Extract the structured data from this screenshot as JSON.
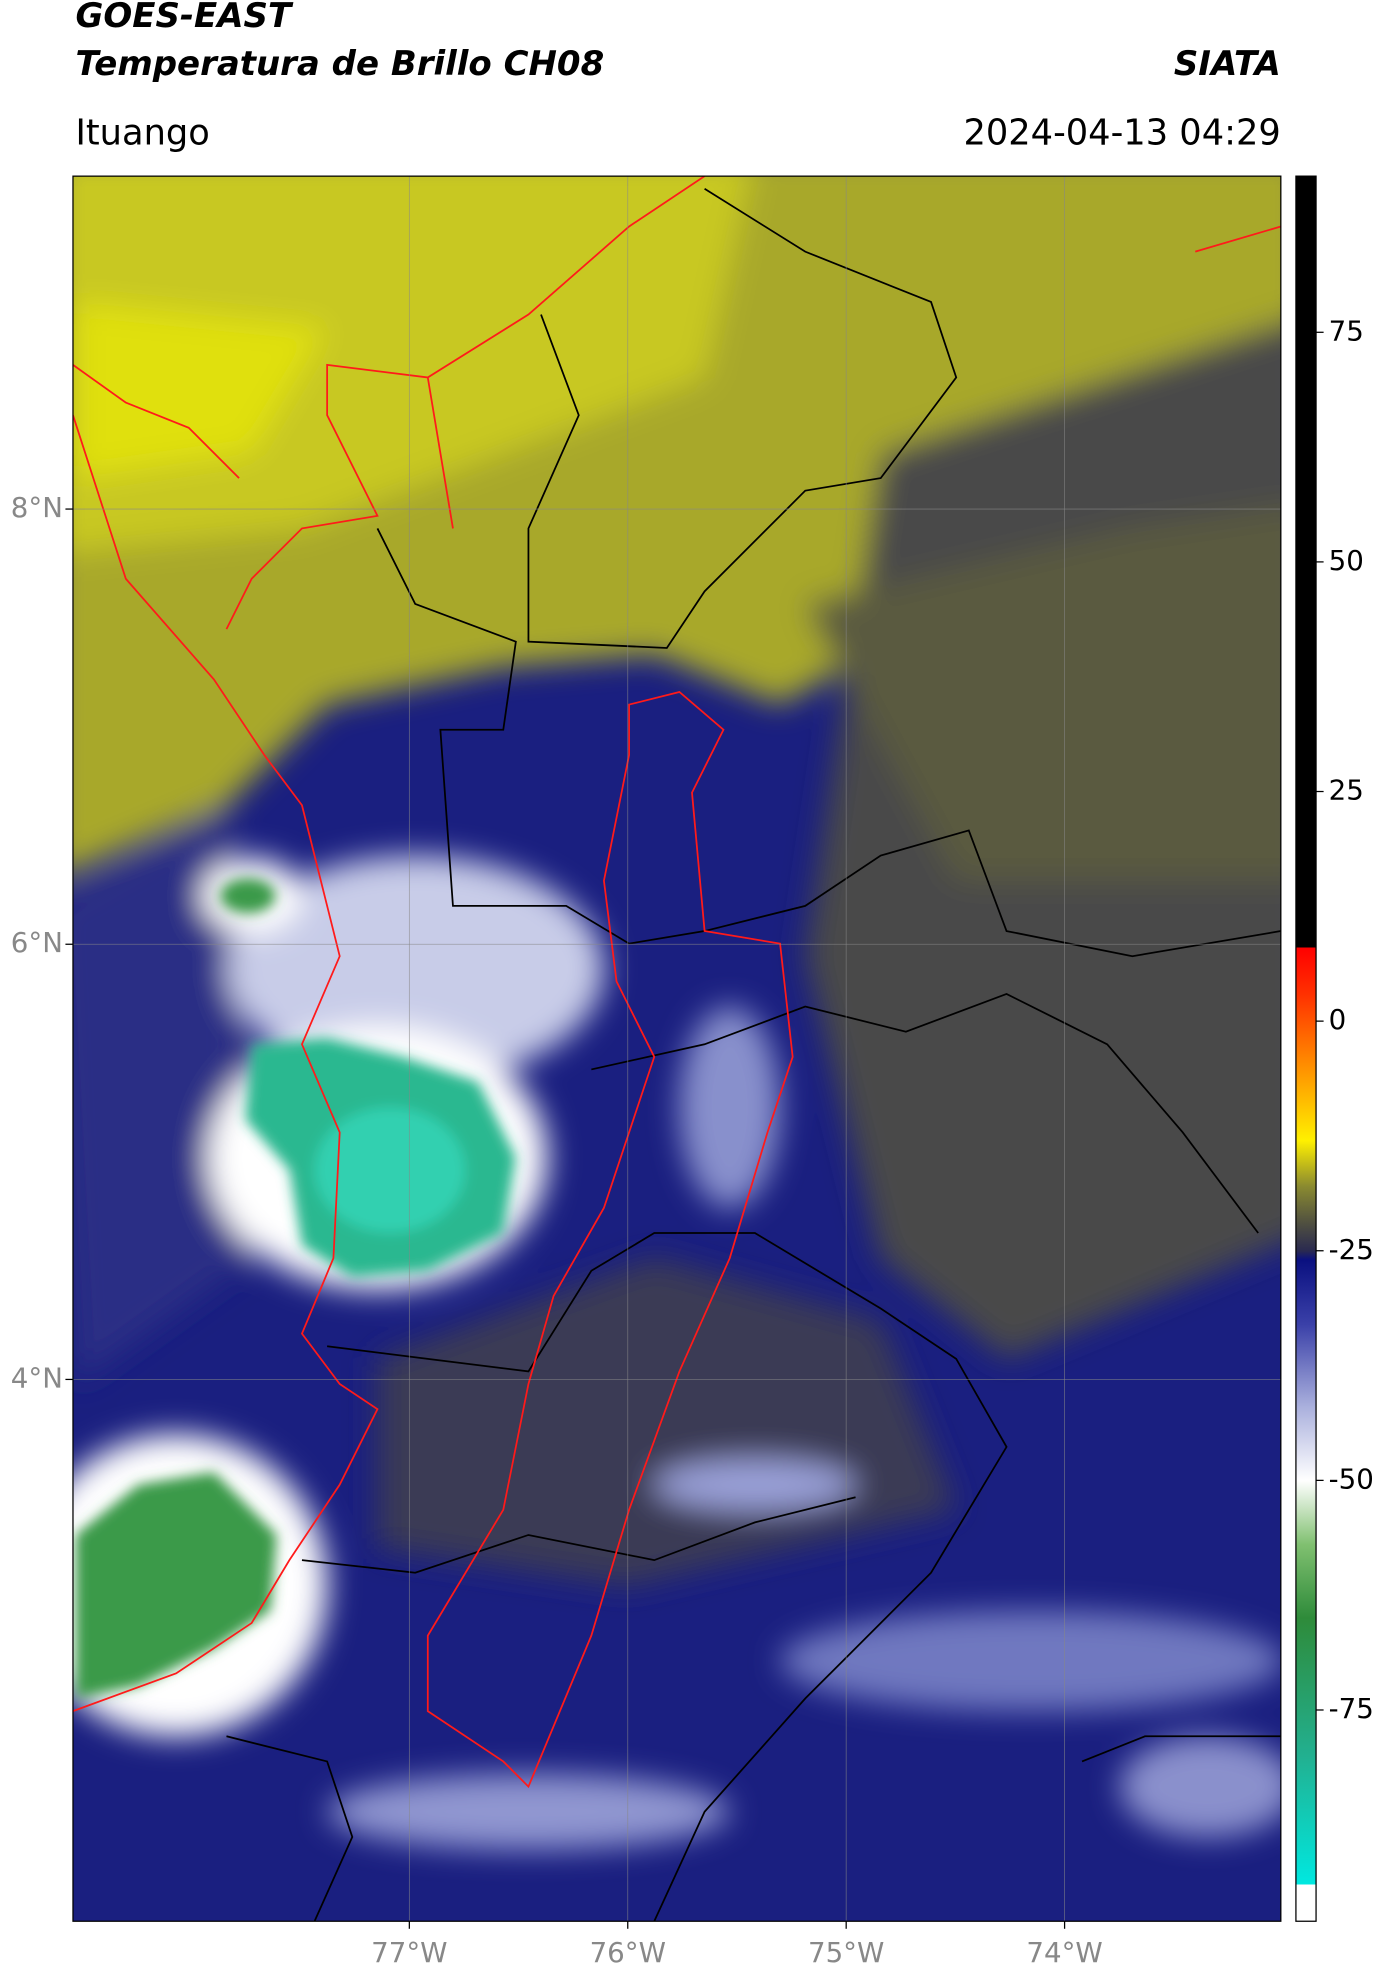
{
  "header": {
    "title": "GOES-EAST",
    "subtitle": "Temperatura de Brillo CH08",
    "organization": "SIATA",
    "location": "Ituango",
    "datetime": "2024-04-13 04:29"
  },
  "map": {
    "xlim": [
      -78.54,
      -73.01
    ],
    "ylim": [
      1.51,
      9.53
    ],
    "xticks": [
      {
        "value": -77,
        "label": "77°W"
      },
      {
        "value": -76,
        "label": "76°W"
      },
      {
        "value": -75,
        "label": "75°W"
      },
      {
        "value": -74,
        "label": "74°W"
      }
    ],
    "yticks": [
      {
        "value": 8,
        "label": "8°N"
      },
      {
        "value": 6,
        "label": "6°N"
      },
      {
        "value": 4,
        "label": "4°N"
      }
    ],
    "grid": true
  },
  "colorbar": {
    "clim": [
      -98,
      92
    ],
    "ticks": [
      75,
      50,
      25,
      0,
      -25,
      -50,
      -75
    ],
    "colormap": [
      [
        -98,
        "#ffffff"
      ],
      [
        -94,
        "#ffffff"
      ],
      [
        -94,
        "#00e8e0"
      ],
      [
        -80,
        "#22b090"
      ],
      [
        -65,
        "#2e8b3a"
      ],
      [
        -57,
        "#80c070"
      ],
      [
        -50,
        "#ffffff"
      ],
      [
        -42,
        "#aab0dd"
      ],
      [
        -33,
        "#3a40a8"
      ],
      [
        -26,
        "#0a1080"
      ],
      [
        -25,
        "#2a2a50"
      ],
      [
        -22,
        "#505040"
      ],
      [
        -18,
        "#8a8a30"
      ],
      [
        -13,
        "#fff000"
      ],
      [
        -5,
        "#ff9000"
      ],
      [
        3,
        "#ff3000"
      ],
      [
        8,
        "#ff0000"
      ],
      [
        8,
        "#000000"
      ],
      [
        92,
        "#000000"
      ]
    ]
  }
}
